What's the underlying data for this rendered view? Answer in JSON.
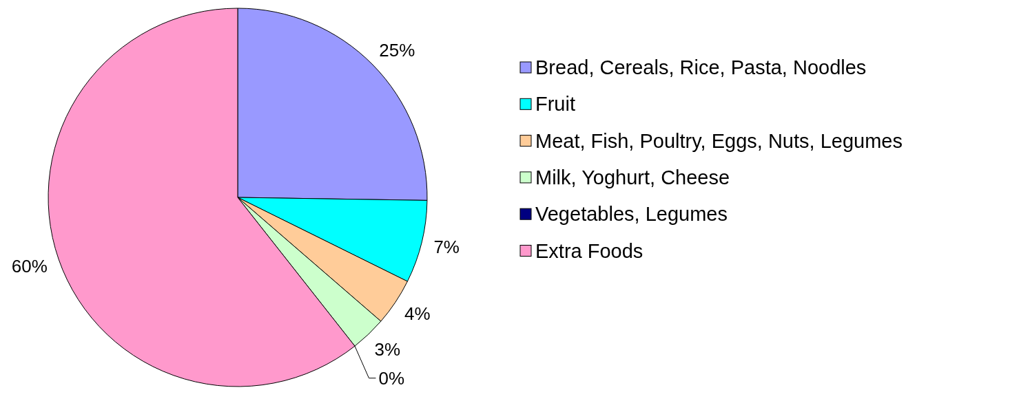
{
  "chart_data": {
    "type": "pie",
    "categories": [
      "Bread, Cereals, Rice, Pasta, Noodles",
      "Fruit",
      "Meat, Fish, Poultry, Eggs, Nuts, Legumes",
      "Milk, Yoghurt, Cheese",
      "Vegetables, Legumes",
      "Extra Foods"
    ],
    "values": [
      25,
      7,
      4,
      3,
      0,
      60
    ],
    "colors": [
      "#9999ff",
      "#00ffff",
      "#ffcc99",
      "#ccffcc",
      "#000080",
      "#ff99cc"
    ],
    "value_labels": [
      "25%",
      "7%",
      "4%",
      "3%",
      "0%",
      "60%"
    ],
    "legend": "right"
  }
}
